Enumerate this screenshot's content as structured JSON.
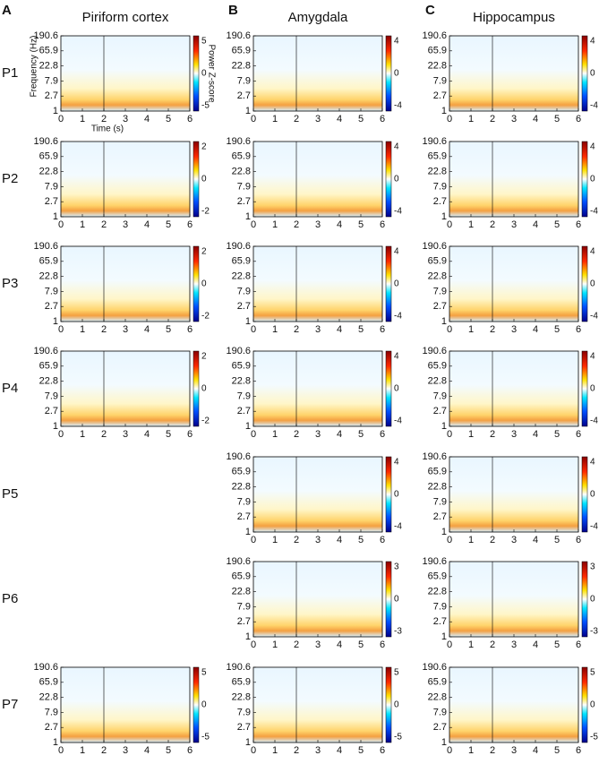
{
  "columns": [
    {
      "letter": "A",
      "title": "Piriform cortex"
    },
    {
      "letter": "B",
      "title": "Amygdala"
    },
    {
      "letter": "C",
      "title": "Hippocampus"
    }
  ],
  "rows": [
    "P1",
    "P2",
    "P3",
    "P4",
    "P5",
    "P6",
    "P7"
  ],
  "yticks": [
    190.6,
    65.9,
    22.8,
    7.9,
    2.7,
    1
  ],
  "xticks": [
    0,
    1,
    2,
    3,
    4,
    5,
    6
  ],
  "ylabel": "Frequency (Hz)",
  "xlabel": "Time (s)",
  "colorbar_label": "Power Z-score",
  "panels": [
    {
      "row": 0,
      "col": 0,
      "cbar": [
        5,
        0,
        -5
      ]
    },
    {
      "row": 0,
      "col": 1,
      "cbar": [
        4,
        0,
        -4
      ]
    },
    {
      "row": 0,
      "col": 2,
      "cbar": [
        4,
        0,
        -4
      ]
    },
    {
      "row": 1,
      "col": 0,
      "cbar": [
        2,
        0,
        -2
      ]
    },
    {
      "row": 1,
      "col": 1,
      "cbar": [
        4,
        0,
        -4
      ]
    },
    {
      "row": 1,
      "col": 2,
      "cbar": [
        4,
        0,
        -4
      ]
    },
    {
      "row": 2,
      "col": 0,
      "cbar": [
        2,
        0,
        -2
      ]
    },
    {
      "row": 2,
      "col": 1,
      "cbar": [
        4,
        0,
        -4
      ]
    },
    {
      "row": 2,
      "col": 2,
      "cbar": [
        4,
        0,
        -4
      ]
    },
    {
      "row": 3,
      "col": 0,
      "cbar": [
        2,
        0,
        -2
      ]
    },
    {
      "row": 3,
      "col": 1,
      "cbar": [
        4,
        0,
        -4
      ]
    },
    {
      "row": 3,
      "col": 2,
      "cbar": [
        4,
        0,
        -4
      ]
    },
    {
      "row": 4,
      "col": 1,
      "cbar": [
        4,
        0,
        -4
      ]
    },
    {
      "row": 4,
      "col": 2,
      "cbar": [
        4,
        0,
        -4
      ]
    },
    {
      "row": 5,
      "col": 1,
      "cbar": [
        3,
        0,
        -3
      ]
    },
    {
      "row": 5,
      "col": 2,
      "cbar": [
        3,
        0,
        -3
      ]
    },
    {
      "row": 6,
      "col": 0,
      "cbar": [
        5,
        0,
        -5
      ]
    },
    {
      "row": 6,
      "col": 1,
      "cbar": [
        5,
        0,
        -5
      ]
    },
    {
      "row": 6,
      "col": 2,
      "cbar": [
        5,
        0,
        -5
      ]
    }
  ]
}
